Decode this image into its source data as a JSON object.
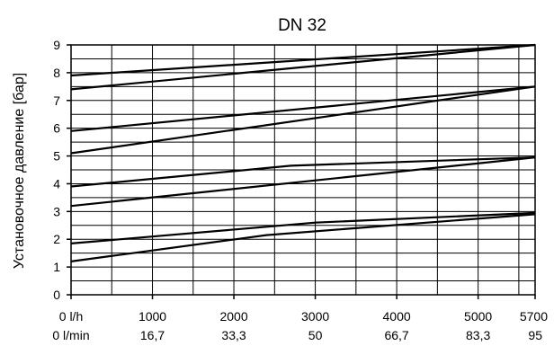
{
  "chart_data": {
    "type": "line",
    "title": "DN 32",
    "ylabel": "Установочное давление [бар]",
    "xlabel": "",
    "xlim": [
      0,
      5700
    ],
    "ylim": [
      0,
      9
    ],
    "grid": true,
    "x_ticks_primary": [
      {
        "value": 0,
        "label": "0 l/h"
      },
      {
        "value": 1000,
        "label": "1000"
      },
      {
        "value": 2000,
        "label": "2000"
      },
      {
        "value": 3000,
        "label": "3000"
      },
      {
        "value": 4000,
        "label": "4000"
      },
      {
        "value": 5000,
        "label": "5000"
      },
      {
        "value": 5700,
        "label": "5700"
      }
    ],
    "x_ticks_secondary": [
      {
        "value": 0,
        "label": "0 l/min"
      },
      {
        "value": 1000,
        "label": "16,7"
      },
      {
        "value": 2000,
        "label": "33,3"
      },
      {
        "value": 3000,
        "label": "50"
      },
      {
        "value": 4000,
        "label": "66,7"
      },
      {
        "value": 5000,
        "label": "83,3"
      },
      {
        "value": 5700,
        "label": "95"
      }
    ],
    "y_ticks": [
      0,
      1,
      2,
      3,
      4,
      5,
      6,
      7,
      8,
      9
    ],
    "series": [
      {
        "x": [
          0,
          5700
        ],
        "y": [
          7.9,
          9.0
        ]
      },
      {
        "x": [
          0,
          5700
        ],
        "y": [
          7.4,
          9.0
        ]
      },
      {
        "x": [
          0,
          5700
        ],
        "y": [
          5.9,
          7.5
        ]
      },
      {
        "x": [
          0,
          5700
        ],
        "y": [
          5.1,
          7.5
        ]
      },
      {
        "x": [
          0,
          2700,
          5700
        ],
        "y": [
          3.9,
          4.65,
          4.95
        ]
      },
      {
        "x": [
          0,
          5700
        ],
        "y": [
          3.2,
          4.95
        ]
      },
      {
        "x": [
          0,
          3000,
          5700
        ],
        "y": [
          1.85,
          2.6,
          2.95
        ]
      },
      {
        "x": [
          0,
          2400,
          5700
        ],
        "y": [
          1.2,
          2.15,
          2.9
        ]
      }
    ]
  }
}
